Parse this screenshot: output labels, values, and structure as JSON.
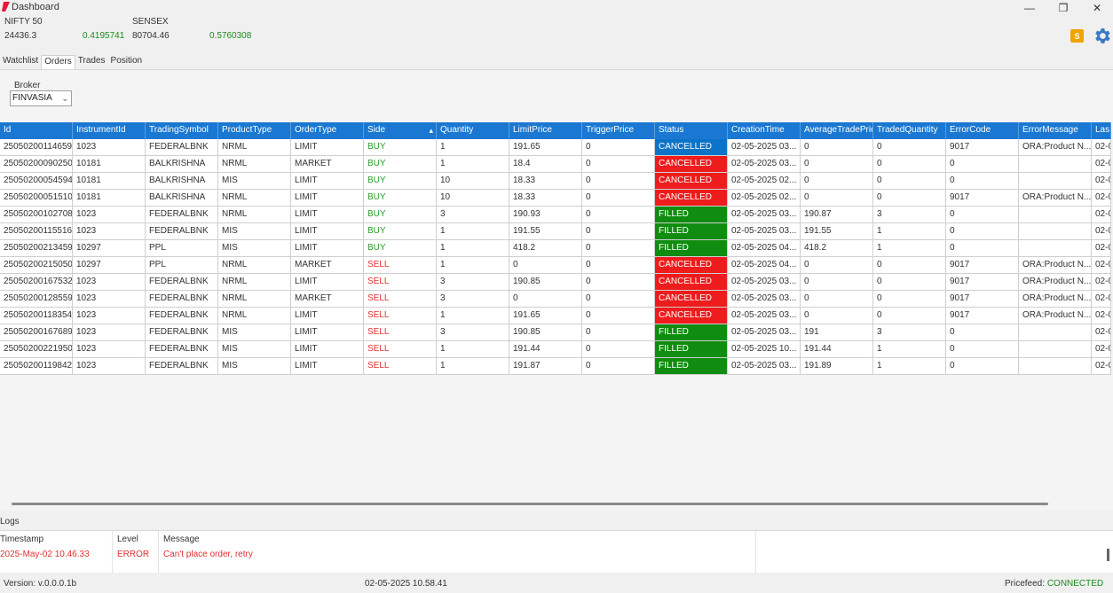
{
  "window": {
    "title": "Dashboard",
    "controls": {
      "minimize": "—",
      "maximize": "❐",
      "close": "✕"
    }
  },
  "tickers": [
    {
      "name": "NIFTY 50",
      "price": "24436.3",
      "change": "0.4195741"
    },
    {
      "name": "SENSEX",
      "price": "80704.46",
      "change": "0.5760308"
    }
  ],
  "header_right": {
    "badge": "S",
    "settings_icon": "gear-icon"
  },
  "tabs": [
    "Watchlist",
    "Orders",
    "Trades",
    "Position"
  ],
  "active_tab": "Orders",
  "broker": {
    "label": "Broker",
    "value": "FINVASIA"
  },
  "orders": {
    "columns": [
      "Id",
      "InstrumentId",
      "TradingSymbol",
      "ProductType",
      "OrderType",
      "Side",
      "Quantity",
      "LimitPrice",
      "TriggerPrice",
      "Status",
      "CreationTime",
      "AverageTradePric",
      "TradedQuantity",
      "ErrorCode",
      "ErrorMessage",
      "Las"
    ],
    "sorted_column": "Side",
    "rows": [
      [
        "25050200114659",
        "1023",
        "FEDERALBNK",
        "NRML",
        "LIMIT",
        "BUY",
        "1",
        "191.65",
        "0",
        "CANCELLED",
        "02-05-2025 03...",
        "0",
        "0",
        "9017",
        "ORA:Product N...",
        "02-0"
      ],
      [
        "25050200090250",
        "10181",
        "BALKRISHNA",
        "NRML",
        "MARKET",
        "BUY",
        "1",
        "18.4",
        "0",
        "CANCELLED",
        "02-05-2025 03...",
        "0",
        "0",
        "0",
        "",
        "02-0"
      ],
      [
        "25050200054594",
        "10181",
        "BALKRISHNA",
        "MIS",
        "LIMIT",
        "BUY",
        "10",
        "18.33",
        "0",
        "CANCELLED",
        "02-05-2025 02...",
        "0",
        "0",
        "0",
        "",
        "02-0"
      ],
      [
        "25050200051510",
        "10181",
        "BALKRISHNA",
        "NRML",
        "LIMIT",
        "BUY",
        "10",
        "18.33",
        "0",
        "CANCELLED",
        "02-05-2025 02...",
        "0",
        "0",
        "9017",
        "ORA:Product N...",
        "02-0"
      ],
      [
        "25050200102708",
        "1023",
        "FEDERALBNK",
        "NRML",
        "LIMIT",
        "BUY",
        "3",
        "190.93",
        "0",
        "FILLED",
        "02-05-2025 03...",
        "190.87",
        "3",
        "0",
        "",
        "02-0"
      ],
      [
        "25050200115516",
        "1023",
        "FEDERALBNK",
        "MIS",
        "LIMIT",
        "BUY",
        "1",
        "191.55",
        "0",
        "FILLED",
        "02-05-2025 03...",
        "191.55",
        "1",
        "0",
        "",
        "02-0"
      ],
      [
        "25050200213459",
        "10297",
        "PPL",
        "MIS",
        "LIMIT",
        "BUY",
        "1",
        "418.2",
        "0",
        "FILLED",
        "02-05-2025 04...",
        "418.2",
        "1",
        "0",
        "",
        "02-0"
      ],
      [
        "25050200215050",
        "10297",
        "PPL",
        "NRML",
        "MARKET",
        "SELL",
        "1",
        "0",
        "0",
        "CANCELLED",
        "02-05-2025 04...",
        "0",
        "0",
        "9017",
        "ORA:Product N...",
        "02-0"
      ],
      [
        "25050200167532",
        "1023",
        "FEDERALBNK",
        "NRML",
        "LIMIT",
        "SELL",
        "3",
        "190.85",
        "0",
        "CANCELLED",
        "02-05-2025 03...",
        "0",
        "0",
        "9017",
        "ORA:Product N...",
        "02-0"
      ],
      [
        "25050200128559",
        "1023",
        "FEDERALBNK",
        "NRML",
        "MARKET",
        "SELL",
        "3",
        "0",
        "0",
        "CANCELLED",
        "02-05-2025 03...",
        "0",
        "0",
        "9017",
        "ORA:Product N...",
        "02-0"
      ],
      [
        "25050200118354",
        "1023",
        "FEDERALBNK",
        "NRML",
        "LIMIT",
        "SELL",
        "1",
        "191.65",
        "0",
        "CANCELLED",
        "02-05-2025 03...",
        "0",
        "0",
        "9017",
        "ORA:Product N...",
        "02-0"
      ],
      [
        "25050200167689",
        "1023",
        "FEDERALBNK",
        "MIS",
        "LIMIT",
        "SELL",
        "3",
        "190.85",
        "0",
        "FILLED",
        "02-05-2025 03...",
        "191",
        "3",
        "0",
        "",
        "02-0"
      ],
      [
        "25050200221950",
        "1023",
        "FEDERALBNK",
        "MIS",
        "LIMIT",
        "SELL",
        "1",
        "191.44",
        "0",
        "FILLED",
        "02-05-2025 10...",
        "191.44",
        "1",
        "0",
        "",
        "02-0"
      ],
      [
        "25050200119842",
        "1023",
        "FEDERALBNK",
        "MIS",
        "LIMIT",
        "SELL",
        "1",
        "191.87",
        "0",
        "FILLED",
        "02-05-2025 03...",
        "191.89",
        "1",
        "0",
        "",
        "02-0"
      ]
    ],
    "selected_row": 0
  },
  "colors": {
    "header_blue": "#1a78d2",
    "cancelled": "#ee1c1c",
    "filled": "#108c10",
    "buy": "#2a9a2a",
    "sell": "#e03030",
    "positive": "#1c8a1c"
  },
  "logs": {
    "title": "Logs",
    "columns": [
      "Timestamp",
      "Level",
      "Message"
    ],
    "entries": [
      {
        "timestamp": "2025-May-02 10.46.33",
        "level": "ERROR",
        "message": "Can't place order, retry"
      }
    ]
  },
  "status": {
    "version": "Version: v.0.0.0.1b",
    "datetime": "02-05-2025 10.58.41",
    "pricefeed_label": "Pricefeed:",
    "pricefeed_status": "CONNECTED"
  }
}
